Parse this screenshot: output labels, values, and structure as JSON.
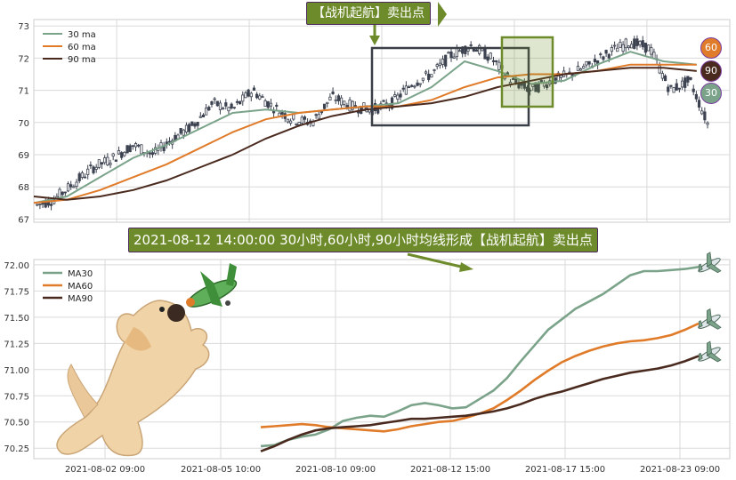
{
  "colors": {
    "ma30": "#7ba38a",
    "ma60": "#e07b2a",
    "ma90": "#4a2a1e",
    "candle": "#3c4250",
    "callout_bg": "#6e8b2b",
    "grid": "#d9d9d9"
  },
  "callouts": {
    "top": "【战机起航】卖出点",
    "mid": "2021-08-12 14:00:00 30小时,60小时,90小时均线形成【战机起航】卖出点"
  },
  "badges": [
    {
      "label": "60",
      "color": "#e07b2a"
    },
    {
      "label": "90",
      "color": "#4a2a1e"
    },
    {
      "label": "30",
      "color": "#7ba38a"
    }
  ],
  "icons": {
    "dog": "dog-illustration-icon",
    "plane_toy": "toy-plane-icon",
    "airplane": "airplane-icon"
  },
  "chart_data": [
    {
      "type": "line",
      "subtype": "candlestick-with-moving-averages",
      "title": "",
      "xlabel": "",
      "ylabel": "",
      "ylim": [
        66.9,
        73.2
      ],
      "yticks": [
        "67",
        "68",
        "69",
        "70",
        "71",
        "72",
        "73"
      ],
      "legend": {
        "placement": "top-left",
        "entries": [
          "30 ma",
          "60 ma",
          "90 ma"
        ]
      },
      "grid": true,
      "series": [
        {
          "name": "30 ma",
          "x": [
            0,
            10,
            20,
            30,
            40,
            50,
            60,
            70,
            80,
            90,
            100,
            110,
            120,
            130,
            140,
            150,
            160,
            170,
            180,
            190,
            200
          ],
          "values": [
            67.5,
            67.7,
            68.3,
            68.9,
            69.3,
            69.8,
            70.3,
            70.4,
            70.3,
            70.4,
            70.5,
            70.6,
            71.1,
            71.9,
            71.6,
            71.2,
            71.3,
            71.8,
            72.2,
            71.9,
            71.8
          ]
        },
        {
          "name": "60 ma",
          "x": [
            0,
            10,
            20,
            30,
            40,
            50,
            60,
            70,
            80,
            90,
            100,
            110,
            120,
            130,
            140,
            150,
            160,
            170,
            180,
            190,
            200
          ],
          "values": [
            67.5,
            67.6,
            67.9,
            68.3,
            68.7,
            69.2,
            69.7,
            70.1,
            70.3,
            70.4,
            70.5,
            70.5,
            70.7,
            71.1,
            71.4,
            71.5,
            71.5,
            71.6,
            71.8,
            71.8,
            71.8
          ]
        },
        {
          "name": "90 ma",
          "x": [
            0,
            10,
            20,
            30,
            40,
            50,
            60,
            70,
            80,
            90,
            100,
            110,
            120,
            130,
            140,
            150,
            160,
            170,
            180,
            190,
            200
          ],
          "values": [
            67.7,
            67.6,
            67.7,
            67.9,
            68.2,
            68.6,
            69.0,
            69.5,
            69.9,
            70.2,
            70.4,
            70.5,
            70.6,
            70.8,
            71.1,
            71.3,
            71.5,
            71.6,
            71.7,
            71.7,
            71.6
          ]
        },
        {
          "name": "price",
          "x": [
            0,
            6,
            12,
            18,
            24,
            30,
            36,
            42,
            48,
            54,
            60,
            66,
            72,
            78,
            84,
            90,
            96,
            102,
            108,
            114,
            120,
            126,
            132,
            138,
            144,
            150,
            156,
            162,
            168,
            174,
            180,
            186,
            192,
            198,
            204
          ],
          "values": [
            67.4,
            67.6,
            68.1,
            68.6,
            68.9,
            69.3,
            69.0,
            69.5,
            69.9,
            70.6,
            70.4,
            71.0,
            70.5,
            70.1,
            70.0,
            70.8,
            70.5,
            70.4,
            70.6,
            71.2,
            71.5,
            72.1,
            72.4,
            72.0,
            71.3,
            71.0,
            71.3,
            71.5,
            71.8,
            72.2,
            72.5,
            72.3,
            71.0,
            71.3,
            69.8
          ]
        }
      ]
    },
    {
      "type": "line",
      "title": "",
      "xlabel": "",
      "ylabel": "",
      "ylim": [
        70.15,
        72.05
      ],
      "yticks": [
        "70.25",
        "70.50",
        "70.75",
        "71.00",
        "71.25",
        "71.50",
        "71.75",
        "72.00"
      ],
      "categories": [
        "2021-08-02 09:00",
        "2021-08-05 10:00",
        "2021-08-10 09:00",
        "2021-08-12 15:00",
        "2021-08-17 15:00",
        "2021-08-23 09:00"
      ],
      "legend": {
        "placement": "top-left",
        "entries": [
          "MA30",
          "MA60",
          "MA90"
        ]
      },
      "grid": true,
      "series": [
        {
          "name": "MA30",
          "x": [
            40,
            45,
            50,
            55,
            60,
            65,
            70,
            75,
            80,
            85,
            90,
            95,
            100,
            105,
            110,
            115,
            120,
            125,
            130,
            135,
            140,
            145,
            150,
            155,
            160,
            165,
            170,
            175,
            180,
            185,
            190,
            195,
            200
          ],
          "values": [
            70.27,
            70.28,
            70.33,
            70.36,
            70.38,
            70.43,
            70.51,
            70.54,
            70.56,
            70.55,
            70.6,
            70.66,
            70.68,
            70.66,
            70.63,
            70.64,
            70.72,
            70.8,
            70.92,
            71.08,
            71.23,
            71.38,
            71.48,
            71.58,
            71.65,
            71.72,
            71.81,
            71.9,
            71.94,
            71.94,
            71.95,
            71.96,
            71.98
          ]
        },
        {
          "name": "MA60",
          "x": [
            40,
            45,
            50,
            55,
            60,
            65,
            70,
            75,
            80,
            85,
            90,
            95,
            100,
            105,
            110,
            115,
            120,
            125,
            130,
            135,
            140,
            145,
            150,
            155,
            160,
            165,
            170,
            175,
            180,
            185,
            190,
            195,
            200
          ],
          "values": [
            70.45,
            70.46,
            70.47,
            70.48,
            70.47,
            70.45,
            70.44,
            70.43,
            70.42,
            70.41,
            70.43,
            70.46,
            70.48,
            70.5,
            70.51,
            70.54,
            70.58,
            70.63,
            70.71,
            70.8,
            70.9,
            70.99,
            71.07,
            71.13,
            71.18,
            71.22,
            71.25,
            71.27,
            71.28,
            71.3,
            71.33,
            71.38,
            71.44
          ]
        },
        {
          "name": "MA90",
          "x": [
            40,
            45,
            50,
            55,
            60,
            65,
            70,
            75,
            80,
            85,
            90,
            95,
            100,
            105,
            110,
            115,
            120,
            125,
            130,
            135,
            140,
            145,
            150,
            155,
            160,
            165,
            170,
            175,
            180,
            185,
            190,
            195,
            200
          ],
          "values": [
            70.22,
            70.27,
            70.33,
            70.38,
            70.42,
            70.44,
            70.45,
            70.46,
            70.47,
            70.49,
            70.51,
            70.53,
            70.53,
            70.54,
            70.55,
            70.56,
            70.58,
            70.6,
            70.63,
            70.67,
            70.72,
            70.76,
            70.79,
            70.83,
            70.87,
            70.91,
            70.94,
            70.97,
            70.99,
            71.01,
            71.04,
            71.08,
            71.13
          ]
        }
      ]
    }
  ]
}
